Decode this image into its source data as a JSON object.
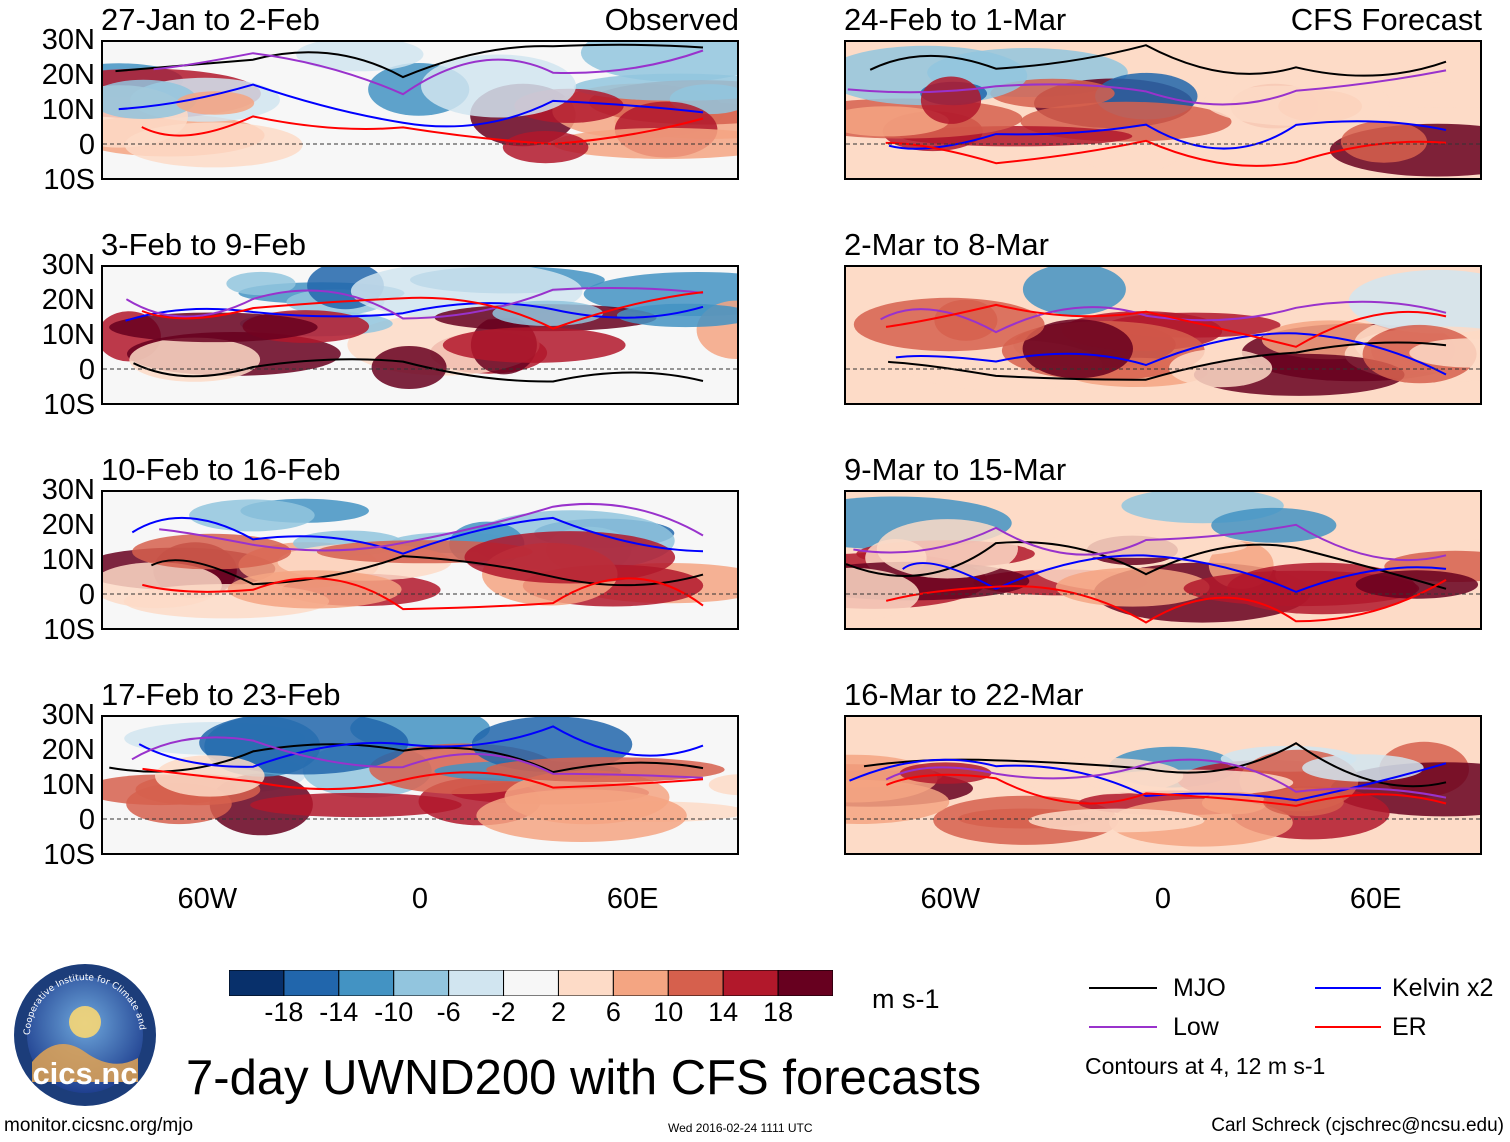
{
  "chart_data": {
    "type": "heatmap",
    "title": "7-day UWND200 with CFS forecasts",
    "variable": "UWND200",
    "units": "m s-1",
    "lat_range": [
      -10,
      30
    ],
    "lon_range": [
      -90,
      90
    ],
    "lat_ticks": [
      "30N",
      "20N",
      "10N",
      "0",
      "10S"
    ],
    "lon_ticks": [
      "60W",
      "0",
      "60E"
    ],
    "colorbar": {
      "levels": [
        "-18",
        "-14",
        "-10",
        "-6",
        "-2",
        "2",
        "6",
        "10",
        "14",
        "18"
      ],
      "colors": [
        "#08306b",
        "#2166ac",
        "#4393c3",
        "#92c5de",
        "#d1e5f0",
        "#f7f7f7",
        "#fddbc7",
        "#f4a582",
        "#d6604d",
        "#b2182b",
        "#67001f"
      ]
    },
    "contours": {
      "note": "Contours at 4, 12 m s-1",
      "series": [
        {
          "name": "MJO",
          "color": "#000000"
        },
        {
          "name": "Kelvin x2",
          "color": "#0000ff"
        },
        {
          "name": "Low",
          "color": "#9932cc"
        },
        {
          "name": "ER",
          "color": "#ff0000"
        }
      ]
    },
    "panels": [
      {
        "title": "27-Jan to 2-Feb",
        "tag": "Observed",
        "column": "observed",
        "row": 0
      },
      {
        "title": "3-Feb to 9-Feb",
        "tag": "",
        "column": "observed",
        "row": 1
      },
      {
        "title": "10-Feb to 16-Feb",
        "tag": "",
        "column": "observed",
        "row": 2
      },
      {
        "title": "17-Feb to 23-Feb",
        "tag": "",
        "column": "observed",
        "row": 3
      },
      {
        "title": "24-Feb to 1-Mar",
        "tag": "CFS Forecast",
        "column": "forecast",
        "row": 0
      },
      {
        "title": "2-Mar to 8-Mar",
        "tag": "",
        "column": "forecast",
        "row": 1
      },
      {
        "title": "9-Mar to 15-Mar",
        "tag": "",
        "column": "forecast",
        "row": 2
      },
      {
        "title": "16-Mar to 22-Mar",
        "tag": "",
        "column": "forecast",
        "row": 3
      }
    ]
  },
  "logo": {
    "text": "cics.nc",
    "ring_text": "Cooperative Institute for Climate and Satellites"
  },
  "footer": {
    "left": "monitor.cicsnc.org/mjo",
    "center": "Wed 2016-02-24 1111 UTC",
    "right": "Carl Schreck (cjschrec@ncsu.edu)"
  }
}
